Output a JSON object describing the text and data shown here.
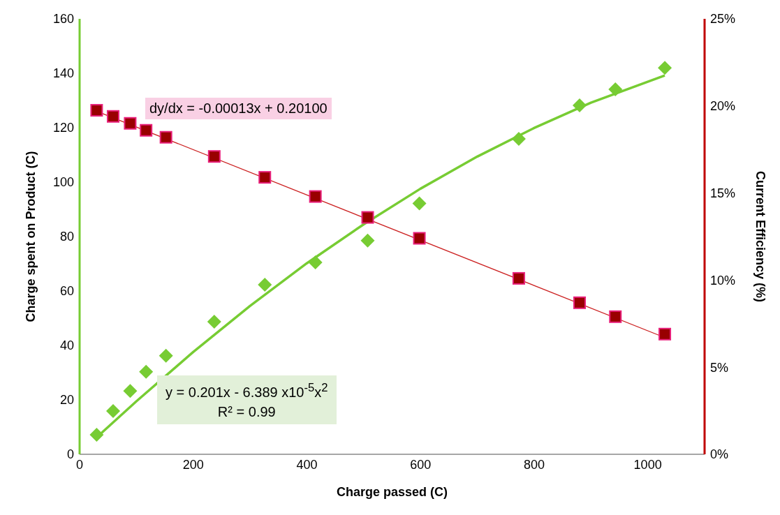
{
  "chart_data": {
    "type": "scatter",
    "xlabel": "Charge passed (C)",
    "ylabel": "Charge spent on Product (C)",
    "y2label": "Current Efficiency (%)",
    "xlim": [
      0,
      1100
    ],
    "xticks": [
      0,
      200,
      400,
      600,
      800,
      1000
    ],
    "ylim": [
      0,
      160
    ],
    "yticks": [
      0,
      20,
      40,
      60,
      80,
      100,
      120,
      140,
      160
    ],
    "y2lim": [
      0,
      25
    ],
    "y2ticks": [
      {
        "value": 0,
        "label": "0%"
      },
      {
        "value": 5,
        "label": "5%"
      },
      {
        "value": 10,
        "label": "10%"
      },
      {
        "value": 15,
        "label": "15%"
      },
      {
        "value": 20,
        "label": "20%"
      },
      {
        "value": 25,
        "label": "25%"
      }
    ],
    "x": [
      30,
      59,
      89,
      117,
      152,
      237,
      326,
      415,
      507,
      598,
      773,
      880,
      943,
      1030
    ],
    "series": [
      {
        "color": "#77cc33",
        "marker": "diamond",
        "values": [
          7.2,
          15.9,
          23.3,
          30.3,
          36.2,
          48.7,
          62.3,
          70.5,
          78.5,
          92.2,
          115.9,
          128.2,
          134.1,
          142
        ]
      },
      {
        "color": "#990000",
        "marker": "square",
        "axis": "y2",
        "values": [
          19.75,
          19.4,
          19.0,
          18.6,
          18.2,
          17.1,
          15.9,
          14.8,
          13.6,
          12.4,
          10.1,
          8.7,
          7.9,
          6.9
        ]
      },
      {
        "type": "line",
        "color": "#77cc33",
        "x": [
          30,
          100,
          200,
          300,
          400,
          500,
          600,
          700,
          800,
          900,
          1030
        ],
        "values": [
          6.2,
          19.5,
          37.6,
          54.5,
          70.2,
          84.5,
          97.6,
          109.4,
          119.9,
          129.2,
          139.2
        ]
      },
      {
        "type": "line",
        "color": "#cc2222",
        "axis": "y2",
        "x": [
          30,
          1030
        ],
        "values": [
          19.7,
          6.7
        ]
      }
    ],
    "annotations": [
      "dy/dx = -0.00013x + 0.20100",
      "y = 0.201x - 6.389 x10$^{-5}$x$^{2}$",
      "R² = 0.99"
    ]
  }
}
